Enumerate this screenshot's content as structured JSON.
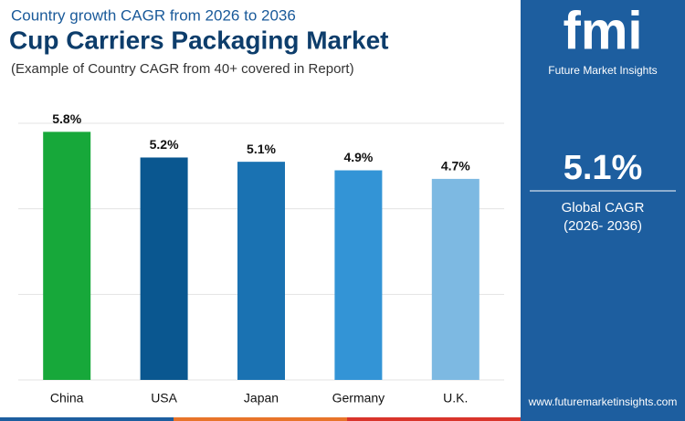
{
  "chart_data": {
    "type": "bar",
    "kicker": "Country growth CAGR from 2026 to 2036",
    "title": "Cup Carriers Packaging Market",
    "subtitle": "(Example of Country CAGR from 40+ covered in Report)",
    "categories": [
      "China",
      "USA",
      "Japan",
      "Germany",
      "U.K."
    ],
    "values": [
      5.8,
      5.2,
      5.1,
      4.9,
      4.7
    ],
    "value_labels": [
      "5.8%",
      "5.2%",
      "5.1%",
      "4.9%",
      "4.7%"
    ],
    "colors": [
      "#17a83a",
      "#0a5790",
      "#1a72b2",
      "#3394d6",
      "#7db9e2"
    ],
    "ylim": [
      0,
      6
    ],
    "yticks": [
      0,
      2,
      4,
      6
    ],
    "grid": true
  },
  "side_panel": {
    "logo": "fmi",
    "brand": "Future Market Insights",
    "global_cagr": "5.1%",
    "cagr_label": "Global CAGR",
    "period": "(2026- 2036)",
    "website": "www.futuremarketinsights.com"
  }
}
